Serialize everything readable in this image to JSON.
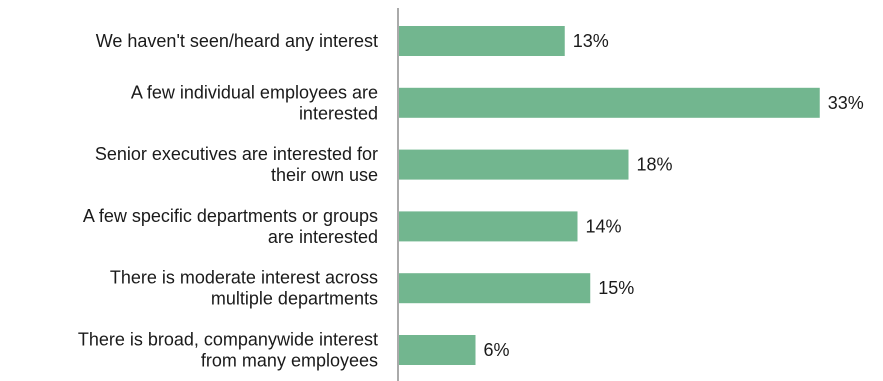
{
  "chart_data": {
    "type": "bar",
    "orientation": "horizontal",
    "categories": [
      [
        "We haven't seen/heard any interest"
      ],
      [
        "A few individual employees are",
        "interested"
      ],
      [
        "Senior executives are interested for",
        "their own use"
      ],
      [
        "A few specific departments or groups",
        "are interested"
      ],
      [
        "There is moderate interest across",
        "multiple departments"
      ],
      [
        "There is broad, companywide interest",
        "from many employees"
      ]
    ],
    "values": [
      13,
      33,
      18,
      14,
      15,
      6
    ],
    "value_labels": [
      "13%",
      "33%",
      "18%",
      "14%",
      "15%",
      "6%"
    ],
    "bar_color": "#72b68f",
    "axis_color": "#555555",
    "grid": false,
    "legend": "none"
  }
}
